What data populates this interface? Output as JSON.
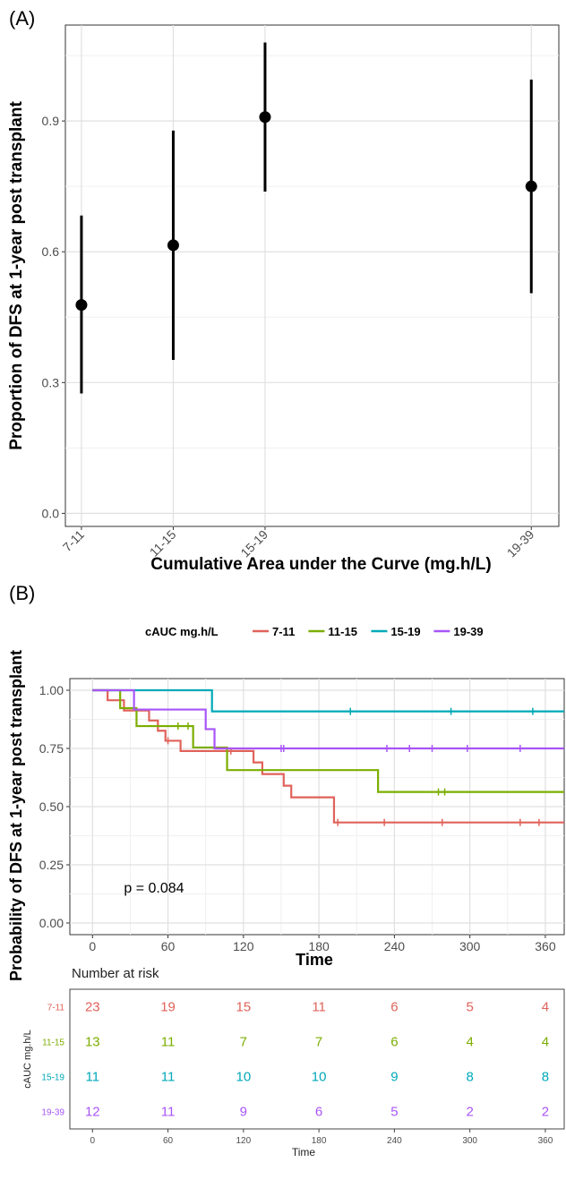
{
  "panel_a_label": "(A)",
  "panel_b_label": "(B)",
  "chart_data": [
    {
      "type": "scatter",
      "subtype": "point-with-error-bars",
      "categories": [
        "7-11",
        "11-15",
        "15-19",
        "19-39"
      ],
      "x_positions": [
        9,
        13,
        17,
        28.6
      ],
      "points": [
        {
          "label": "7-11",
          "x": 9,
          "y": 0.478,
          "lower": 0.275,
          "upper": 0.683
        },
        {
          "label": "11-15",
          "x": 13,
          "y": 0.615,
          "lower": 0.352,
          "upper": 0.878
        },
        {
          "label": "15-19",
          "x": 17,
          "y": 0.909,
          "lower": 0.738,
          "upper": 1.08
        },
        {
          "label": "19-39",
          "x": 28.6,
          "y": 0.75,
          "lower": 0.505,
          "upper": 0.995
        }
      ],
      "xlabel": "Cumulative Area under the Curve (mg.h/L)",
      "ylabel": "Proportion of DFS at 1-year post transplant",
      "yticks": [
        "0.0",
        "0.3",
        "0.6",
        "0.9"
      ],
      "ylim": [
        -0.03,
        1.12
      ],
      "xlim": [
        8.3,
        29.8
      ],
      "grid": true
    },
    {
      "type": "line",
      "subtype": "kaplan-meier",
      "legend_title": "cAUC mg.h/L",
      "legend_position": "top",
      "xlabel": "Time",
      "ylabel": "Probability of DFS at 1-year post transplant",
      "xticks": [
        "0",
        "60",
        "120",
        "180",
        "240",
        "300",
        "360"
      ],
      "yticks": [
        "0.00",
        "0.25",
        "0.50",
        "0.75",
        "1.00"
      ],
      "xlim": [
        -18,
        375
      ],
      "ylim": [
        -0.05,
        1.05
      ],
      "annotation": "p = 0.084",
      "grid": true,
      "series": [
        {
          "name": "7-11",
          "color": "#e0625a",
          "steps": [
            [
              0,
              1
            ],
            [
              12,
              0.957
            ],
            [
              25,
              0.913
            ],
            [
              45,
              0.87
            ],
            [
              52,
              0.826
            ],
            [
              58,
              0.783
            ],
            [
              70,
              0.739
            ],
            [
              128,
              0.69
            ],
            [
              135,
              0.64
            ],
            [
              152,
              0.59
            ],
            [
              158,
              0.54
            ],
            [
              192,
              0.432
            ],
            [
              375,
              0.432
            ]
          ],
          "censors": [
            [
              60,
              0.783
            ],
            [
              110,
              0.739
            ],
            [
              195,
              0.432
            ],
            [
              232,
              0.432
            ],
            [
              278,
              0.432
            ],
            [
              340,
              0.432
            ],
            [
              355,
              0.432
            ]
          ]
        },
        {
          "name": "11-15",
          "color": "#7cae00",
          "steps": [
            [
              0,
              1
            ],
            [
              22,
              0.923
            ],
            [
              35,
              0.846
            ],
            [
              80,
              0.754
            ],
            [
              107,
              0.657
            ],
            [
              227,
              0.563
            ],
            [
              375,
              0.563
            ]
          ],
          "censors": [
            [
              68,
              0.846
            ],
            [
              76,
              0.846
            ],
            [
              275,
              0.563
            ],
            [
              280,
              0.563
            ]
          ]
        },
        {
          "name": "15-19",
          "color": "#00a9b8",
          "steps": [
            [
              0,
              1
            ],
            [
              95,
              0.909
            ],
            [
              375,
              0.909
            ]
          ],
          "censors": [
            [
              205,
              0.909
            ],
            [
              285,
              0.909
            ],
            [
              350,
              0.909
            ]
          ]
        },
        {
          "name": "19-39",
          "color": "#a855f7",
          "steps": [
            [
              0,
              1
            ],
            [
              33,
              0.917
            ],
            [
              90,
              0.833
            ],
            [
              97,
              0.75
            ],
            [
              375,
              0.75
            ]
          ],
          "censors": [
            [
              150,
              0.75
            ],
            [
              152,
              0.75
            ],
            [
              234,
              0.75
            ],
            [
              252,
              0.75
            ],
            [
              270,
              0.75
            ],
            [
              298,
              0.75
            ],
            [
              340,
              0.75
            ]
          ]
        }
      ]
    },
    {
      "type": "table",
      "title": "Number at risk",
      "ylabel": "cAUC mg.h/L",
      "xlabel": "Time",
      "times": [
        "0",
        "60",
        "120",
        "180",
        "240",
        "300",
        "360"
      ],
      "rows": [
        {
          "name": "7-11",
          "color": "#e0625a",
          "values": [
            "23",
            "19",
            "15",
            "11",
            "6",
            "5",
            "4"
          ]
        },
        {
          "name": "11-15",
          "color": "#7cae00",
          "values": [
            "13",
            "11",
            "7",
            "7",
            "6",
            "4",
            "4"
          ]
        },
        {
          "name": "15-19",
          "color": "#00a9b8",
          "values": [
            "11",
            "11",
            "10",
            "10",
            "9",
            "8",
            "8"
          ]
        },
        {
          "name": "19-39",
          "color": "#a855f7",
          "values": [
            "12",
            "11",
            "9",
            "6",
            "5",
            "2",
            "2"
          ]
        }
      ]
    }
  ]
}
